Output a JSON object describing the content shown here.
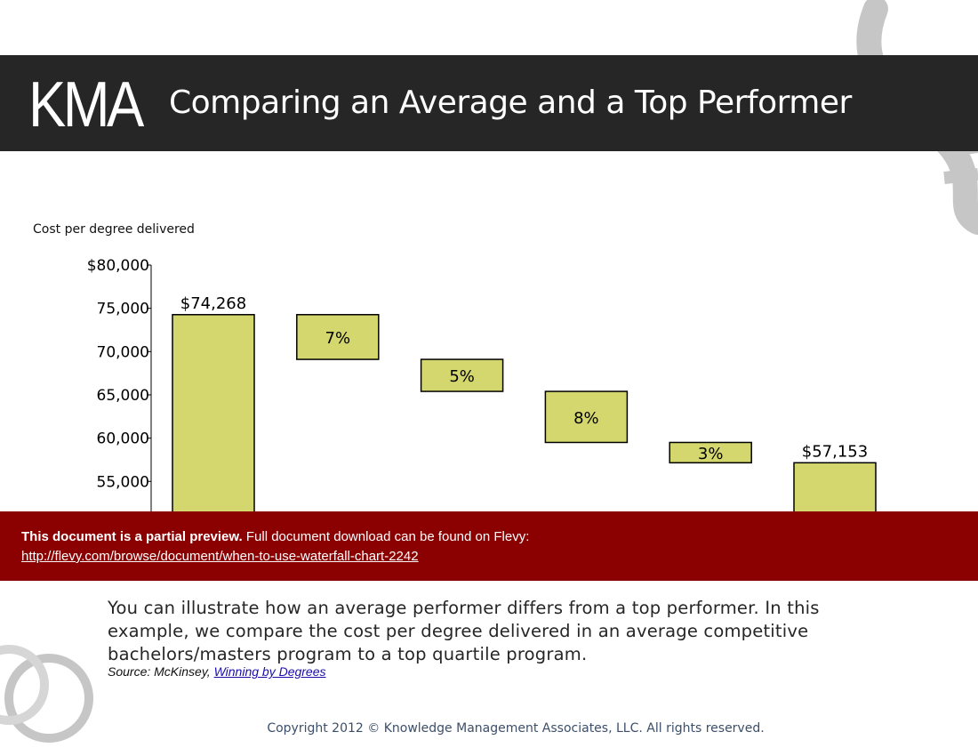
{
  "header": {
    "logo": "KMA",
    "title": "Comparing an Average and a Top Performer"
  },
  "chart_data": {
    "type": "waterfall",
    "title": "Comparing an Average and a Top Performer",
    "ylabel": "Cost per degree delivered",
    "ylim": [
      52000,
      80000
    ],
    "yticks": [
      {
        "value": 80000,
        "label": "$80,000"
      },
      {
        "value": 75000,
        "label": "75,000"
      },
      {
        "value": 70000,
        "label": "70,000"
      },
      {
        "value": 65000,
        "label": "65,000"
      },
      {
        "value": 60000,
        "label": "60,000"
      },
      {
        "value": 55000,
        "label": "55,000"
      }
    ],
    "bars": [
      {
        "kind": "total",
        "start": 0,
        "end": 74268,
        "label": "$74,268",
        "label_pos": "above"
      },
      {
        "kind": "step",
        "start": 74268,
        "end": 69100,
        "label": "7%",
        "label_pos": "inside"
      },
      {
        "kind": "step",
        "start": 69100,
        "end": 65400,
        "label": "5%",
        "label_pos": "inside"
      },
      {
        "kind": "step",
        "start": 65400,
        "end": 59500,
        "label": "8%",
        "label_pos": "inside"
      },
      {
        "kind": "step",
        "start": 59500,
        "end": 57153,
        "label": "3%",
        "label_pos": "inside"
      },
      {
        "kind": "total",
        "start": 0,
        "end": 57153,
        "label": "$57,153",
        "label_pos": "above"
      }
    ],
    "bar_color": "#d4d76e",
    "bar_stroke": "#000000"
  },
  "banner": {
    "strong": "This document is a partial preview.",
    "text": "Full document download can be found on Flevy:",
    "link": "http://flevy.com/browse/document/when-to-use-waterfall-chart-2242",
    "color": "#8b0000"
  },
  "caption": "You can illustrate how an average performer differs from a top performer.  In this example, we compare the cost per degree delivered in an average competitive bachelors/masters program to a top quartile program.",
  "source": {
    "prefix": "Source: McKinsey,",
    "link": "Winning by Degrees"
  },
  "copyright": "Copyright 2012 © Knowledge Management Associates, LLC.  All rights reserved."
}
